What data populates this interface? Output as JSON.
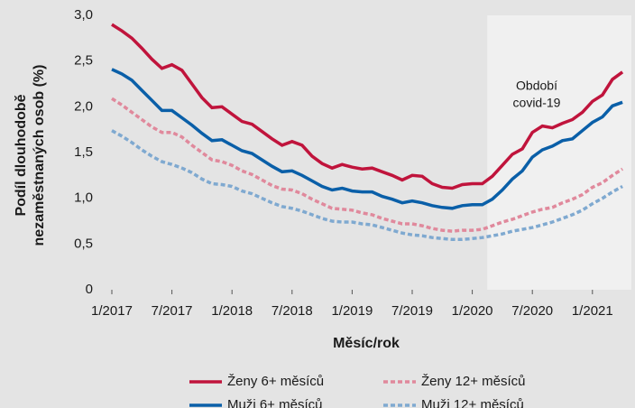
{
  "chart_data": {
    "type": "line",
    "ylabel": [
      "Podíl dlouhodobě",
      "nezaměstnaných osob (%)"
    ],
    "xlabel": "Měsíc/rok",
    "annotation": {
      "text": [
        "Období",
        "covid-19"
      ],
      "shaded_from": 38
    },
    "categories": [
      "1/2017",
      null,
      null,
      null,
      null,
      null,
      "7/2017",
      null,
      null,
      null,
      null,
      null,
      "1/2018",
      null,
      null,
      null,
      null,
      null,
      "7/2018",
      null,
      null,
      null,
      null,
      null,
      "1/2019",
      null,
      null,
      null,
      null,
      null,
      "7/2019",
      null,
      null,
      null,
      null,
      null,
      "1/2020",
      null,
      null,
      null,
      null,
      null,
      "7/2020",
      null,
      null,
      null,
      null,
      null,
      "1/2021",
      null,
      null,
      null
    ],
    "series": [
      {
        "name": "Ženy 6+ měsíců",
        "color": "#c0143c",
        "style": "solid",
        "values": [
          2.9,
          2.83,
          2.75,
          2.64,
          2.52,
          2.42,
          2.46,
          2.4,
          2.25,
          2.1,
          1.99,
          2.0,
          1.92,
          1.84,
          1.81,
          1.73,
          1.65,
          1.58,
          1.62,
          1.58,
          1.46,
          1.38,
          1.33,
          1.37,
          1.34,
          1.32,
          1.33,
          1.29,
          1.25,
          1.2,
          1.25,
          1.24,
          1.16,
          1.12,
          1.11,
          1.15,
          1.16,
          1.16,
          1.24,
          1.36,
          1.48,
          1.54,
          1.72,
          1.79,
          1.77,
          1.82,
          1.86,
          1.94,
          2.06,
          2.13,
          2.3,
          2.38
        ]
      },
      {
        "name": "Ženy 12+ měsíců",
        "color": "#e0899c",
        "style": "dashed",
        "values": [
          2.09,
          2.02,
          1.94,
          1.86,
          1.78,
          1.72,
          1.72,
          1.67,
          1.58,
          1.5,
          1.42,
          1.4,
          1.36,
          1.3,
          1.26,
          1.2,
          1.14,
          1.1,
          1.09,
          1.05,
          0.99,
          0.94,
          0.89,
          0.88,
          0.87,
          0.84,
          0.82,
          0.78,
          0.75,
          0.72,
          0.72,
          0.7,
          0.67,
          0.65,
          0.64,
          0.65,
          0.65,
          0.66,
          0.7,
          0.74,
          0.77,
          0.81,
          0.85,
          0.88,
          0.9,
          0.95,
          0.99,
          1.04,
          1.12,
          1.17,
          1.25,
          1.32
        ]
      },
      {
        "name": "Muži 6+ měsíců",
        "color": "#0a5fa8",
        "style": "solid",
        "values": [
          2.41,
          2.36,
          2.29,
          2.18,
          2.07,
          1.96,
          1.96,
          1.88,
          1.8,
          1.71,
          1.63,
          1.64,
          1.58,
          1.52,
          1.49,
          1.42,
          1.35,
          1.29,
          1.3,
          1.25,
          1.19,
          1.13,
          1.09,
          1.11,
          1.08,
          1.07,
          1.07,
          1.02,
          0.99,
          0.95,
          0.97,
          0.95,
          0.92,
          0.9,
          0.89,
          0.92,
          0.93,
          0.93,
          0.99,
          1.09,
          1.21,
          1.3,
          1.45,
          1.53,
          1.57,
          1.63,
          1.65,
          1.74,
          1.83,
          1.89,
          2.01,
          2.05
        ]
      },
      {
        "name": "Muži 12+ měsíců",
        "color": "#7fa9d0",
        "style": "dashed",
        "values": [
          1.74,
          1.68,
          1.61,
          1.53,
          1.46,
          1.4,
          1.37,
          1.33,
          1.28,
          1.21,
          1.16,
          1.15,
          1.13,
          1.08,
          1.05,
          1.0,
          0.95,
          0.91,
          0.89,
          0.86,
          0.82,
          0.78,
          0.75,
          0.74,
          0.74,
          0.72,
          0.71,
          0.68,
          0.65,
          0.62,
          0.6,
          0.59,
          0.57,
          0.56,
          0.55,
          0.55,
          0.56,
          0.57,
          0.59,
          0.61,
          0.64,
          0.66,
          0.68,
          0.71,
          0.74,
          0.78,
          0.82,
          0.87,
          0.94,
          1.0,
          1.07,
          1.13
        ]
      }
    ],
    "ylim": [
      0,
      3
    ],
    "yticks": [
      0,
      {
        "value": 0.5,
        "label": "0,5"
      },
      {
        "value": 1,
        "label": "1,0"
      },
      {
        "value": 1.5,
        "label": "1,5"
      },
      {
        "value": 2,
        "label": "2,0"
      },
      {
        "value": 2.5,
        "label": "2,5"
      },
      {
        "value": 3,
        "label": "3,0"
      }
    ],
    "legend": "bottom"
  }
}
